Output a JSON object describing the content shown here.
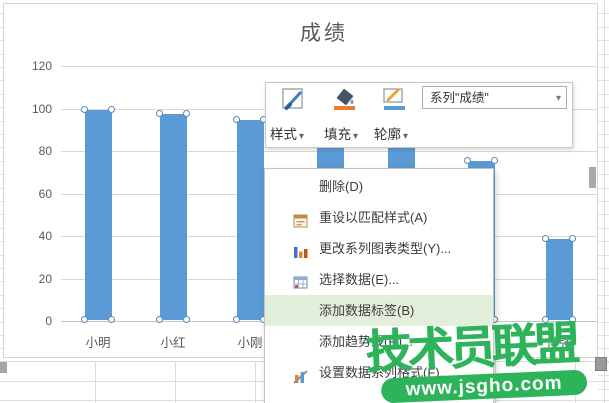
{
  "chart_data": {
    "type": "bar",
    "title": "成绩",
    "series": [
      {
        "name": "成绩",
        "values": [
          99,
          97,
          94,
          85,
          83,
          75,
          38
        ]
      }
    ],
    "categories": [
      "小明",
      "小红",
      "小刚",
      "",
      "",
      "",
      "傻强"
    ],
    "ylim": [
      0,
      120
    ],
    "yticks": [
      0,
      20,
      40,
      60,
      80,
      100,
      120
    ],
    "grid": true,
    "legend": "none",
    "bar_color": "#5B9BD5",
    "selection_handles": true
  },
  "mini_toolbar": {
    "buttons": [
      {
        "label": "样式"
      },
      {
        "label": "填充"
      },
      {
        "label": "轮廓"
      }
    ],
    "series_selector": "系列\"成绩\"",
    "caret": "▾"
  },
  "context_menu": {
    "items": [
      {
        "label": "删除(D)"
      },
      {
        "label": "重设以匹配样式(A)"
      },
      {
        "label": "更改系列图表类型(Y)..."
      },
      {
        "label": "选择数据(E)..."
      },
      {
        "label": "添加数据标签(B)",
        "highlighted": true
      },
      {
        "label": "添加趋势线(R)..."
      },
      {
        "label": "设置数据系列格式(F)..."
      }
    ],
    "highlight_color": "#E4EFDB"
  },
  "watermark": {
    "title": "技术员联盟",
    "url": "www.jsgho.com",
    "color": "#2DB45A"
  }
}
